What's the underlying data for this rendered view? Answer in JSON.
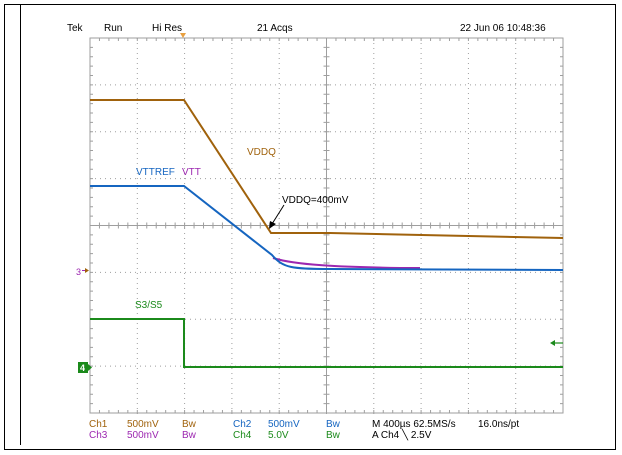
{
  "header": {
    "brand": "Tek",
    "mode": "Run",
    "acquisition": "Hi Res",
    "acqs": "21 Acqs",
    "datetime": "22 Jun 06 10:48:36"
  },
  "traces": {
    "vddq_label": "VDDQ",
    "vttref_label": "VTTREF",
    "vtt_label": "VTT",
    "s3s5_label": "S3/S5",
    "annotation": "VDDQ=400mV"
  },
  "markers": {
    "ch3_marker": "3",
    "ch4_marker": "4"
  },
  "footer": {
    "row1": {
      "ch1": "Ch1",
      "ch1_scale": "500mV",
      "ch1_bw": "Bw",
      "ch2": "Ch2",
      "ch2_scale": "500mV",
      "ch2_bw": "Bw",
      "timebase": "M 400µs 62.5MS/s",
      "resolution": "16.0ns/pt"
    },
    "row2": {
      "ch3": "Ch3",
      "ch3_scale": "500mV",
      "ch3_bw": "Bw",
      "ch4": "Ch4",
      "ch4_scale": "5.0V",
      "ch4_bw": "Bw",
      "trigger": "A  Ch4  ╲  2.5V"
    }
  },
  "colors": {
    "ch1": "#a0620c",
    "ch2": "#1565c0",
    "ch3": "#9c27b0",
    "ch4": "#1b8a1b",
    "grid": "#9e9e9e",
    "trigger_marker": "#e8a040"
  }
}
